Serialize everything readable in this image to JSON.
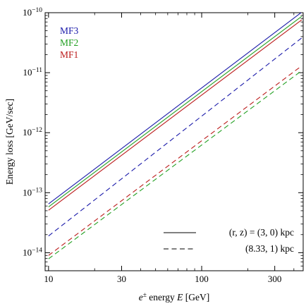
{
  "chart_data": {
    "type": "line",
    "xlabel": "e± energy E [GeV]",
    "ylabel": "Energy loss [GeV/sec]",
    "x_scale": "log",
    "y_scale": "log",
    "xlim": [
      9.5,
      460
    ],
    "ylim": [
      5e-15,
      1e-10
    ],
    "x_ticks": [
      {
        "value": 10,
        "label": "10"
      },
      {
        "value": 30,
        "label": "30"
      },
      {
        "value": 100,
        "label": "100"
      },
      {
        "value": 300,
        "label": "300"
      }
    ],
    "y_ticks": [
      {
        "value": 1e-14,
        "base": "10",
        "exp": "−14"
      },
      {
        "value": 1e-13,
        "base": "10",
        "exp": "−13"
      },
      {
        "value": 1e-12,
        "base": "10",
        "exp": "−12"
      },
      {
        "value": 1e-11,
        "base": "10",
        "exp": "−11"
      },
      {
        "value": 1e-10,
        "base": "10",
        "exp": "−10"
      }
    ],
    "grid": false,
    "series_labels": [
      {
        "name": "MF3",
        "color": "#1a1aaa"
      },
      {
        "name": "MF2",
        "color": "#22a022"
      },
      {
        "name": "MF1",
        "color": "#bb1a1a"
      }
    ],
    "line_style_legend": [
      {
        "label": "(r, z) = (3, 0) kpc",
        "dash": "solid"
      },
      {
        "label": "(8.33, 1) kpc",
        "dash": "dashed"
      }
    ],
    "series": [
      {
        "name": "MF3",
        "location": "(3, 0)",
        "color": "#1a1aaa",
        "dash": "solid",
        "x": [
          10,
          450
        ],
        "y": [
          6.5e-14,
          1.02e-10
        ]
      },
      {
        "name": "MF2",
        "location": "(3, 0)",
        "color": "#22a022",
        "dash": "solid",
        "x": [
          10,
          450
        ],
        "y": [
          5.8e-14,
          8.7e-11
        ]
      },
      {
        "name": "MF1",
        "location": "(3, 0)",
        "color": "#bb1a1a",
        "dash": "solid",
        "x": [
          10,
          450
        ],
        "y": [
          5.1e-14,
          7.6e-11
        ]
      },
      {
        "name": "MF3",
        "location": "(8.33, 1)",
        "color": "#1a1aaa",
        "dash": "dashed",
        "x": [
          10,
          450
        ],
        "y": [
          1.9e-14,
          3.8e-11
        ]
      },
      {
        "name": "MF1",
        "location": "(8.33, 1)",
        "color": "#bb1a1a",
        "dash": "dashed",
        "x": [
          10,
          450
        ],
        "y": [
          9e-15,
          1.3e-11
        ]
      },
      {
        "name": "MF2",
        "location": "(8.33, 1)",
        "color": "#22a022",
        "dash": "dashed",
        "x": [
          10,
          450
        ],
        "y": [
          7.9e-15,
          1.08e-11
        ]
      }
    ]
  }
}
